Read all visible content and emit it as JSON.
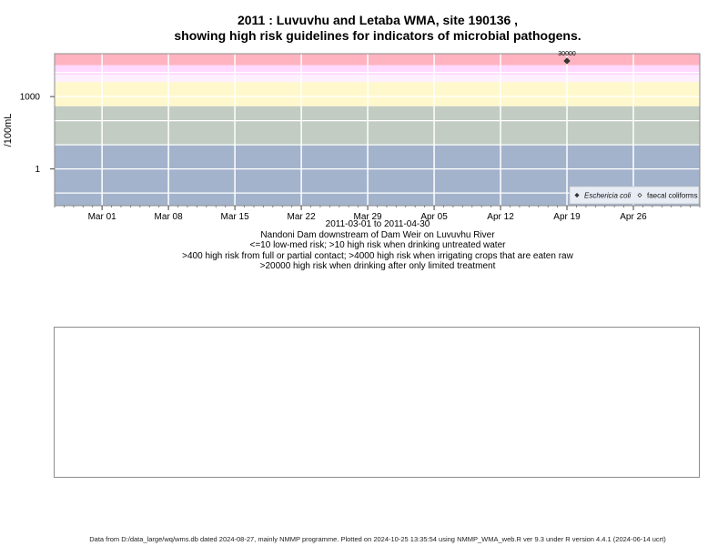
{
  "title_line1": "2011 : Luvuvhu and Letaba WMA, site 190136 ,",
  "title_line2": "showing high risk guidelines for indicators of microbial pathogens.",
  "subtitle_lines": [
    "2011-03-01 to 2011-04-30",
    "Nandoni Dam downstream of Dam Weir on Luvuvhu River",
    "<=10 low-med risk; >10 high risk when drinking untreated water",
    ">400 high risk from full or partial contact; >4000 high risk when irrigating crops that are eaten raw",
    ">20000 high risk when drinking after only limited treatment"
  ],
  "footer": "Data from D:/data_large/wq/wms.db dated 2024-08-27, mainly NMMP programme. Plotted on 2024-10-25 13:35:54 using NMMP_WMA_web.R ver 9.3 under R version 4.4.1 (2024-06-14 ucrt)",
  "chart_data": {
    "type": "scatter",
    "ylabel": "/100mL",
    "y_scale": "log",
    "xlim": [
      "2011-02-24",
      "2011-05-03"
    ],
    "ylim": [
      0.03,
      60000
    ],
    "x_ticks": [
      {
        "date": "2011-03-01",
        "label": "Mar 01"
      },
      {
        "date": "2011-03-08",
        "label": "Mar 08"
      },
      {
        "date": "2011-03-15",
        "label": "Mar 15"
      },
      {
        "date": "2011-03-22",
        "label": "Mar 22"
      },
      {
        "date": "2011-03-29",
        "label": "Mar 29"
      },
      {
        "date": "2011-04-05",
        "label": "Apr 05"
      },
      {
        "date": "2011-04-12",
        "label": "Apr 12"
      },
      {
        "date": "2011-04-19",
        "label": "Apr 19"
      },
      {
        "date": "2011-04-26",
        "label": "Apr 26"
      }
    ],
    "y_ticks": [
      {
        "value": 1,
        "label": "1"
      },
      {
        "value": 1000,
        "label": "1000"
      }
    ],
    "risk_bands": [
      {
        "from": 0.03,
        "to": 10,
        "color": "#a3b3cc"
      },
      {
        "from": 10,
        "to": 400,
        "color": "#c2ccc2"
      },
      {
        "from": 400,
        "to": 4000,
        "color": "#fff8cc"
      },
      {
        "from": 4000,
        "to": 8000,
        "color": "#fff0ff"
      },
      {
        "from": 8000,
        "to": 20000,
        "color": "#ffd9ff"
      },
      {
        "from": 20000,
        "to": 60000,
        "color": "#ffb3c0"
      }
    ],
    "series": [
      {
        "name": "Eschericia coli",
        "marker": "filled-diamond",
        "points": [
          {
            "date": "2011-04-19",
            "value": 30000,
            "label": "30000"
          }
        ]
      },
      {
        "name": "faecal coliforms",
        "marker": "open-diamond",
        "points": []
      }
    ],
    "legend_position": "bottom-right",
    "grid": true
  }
}
